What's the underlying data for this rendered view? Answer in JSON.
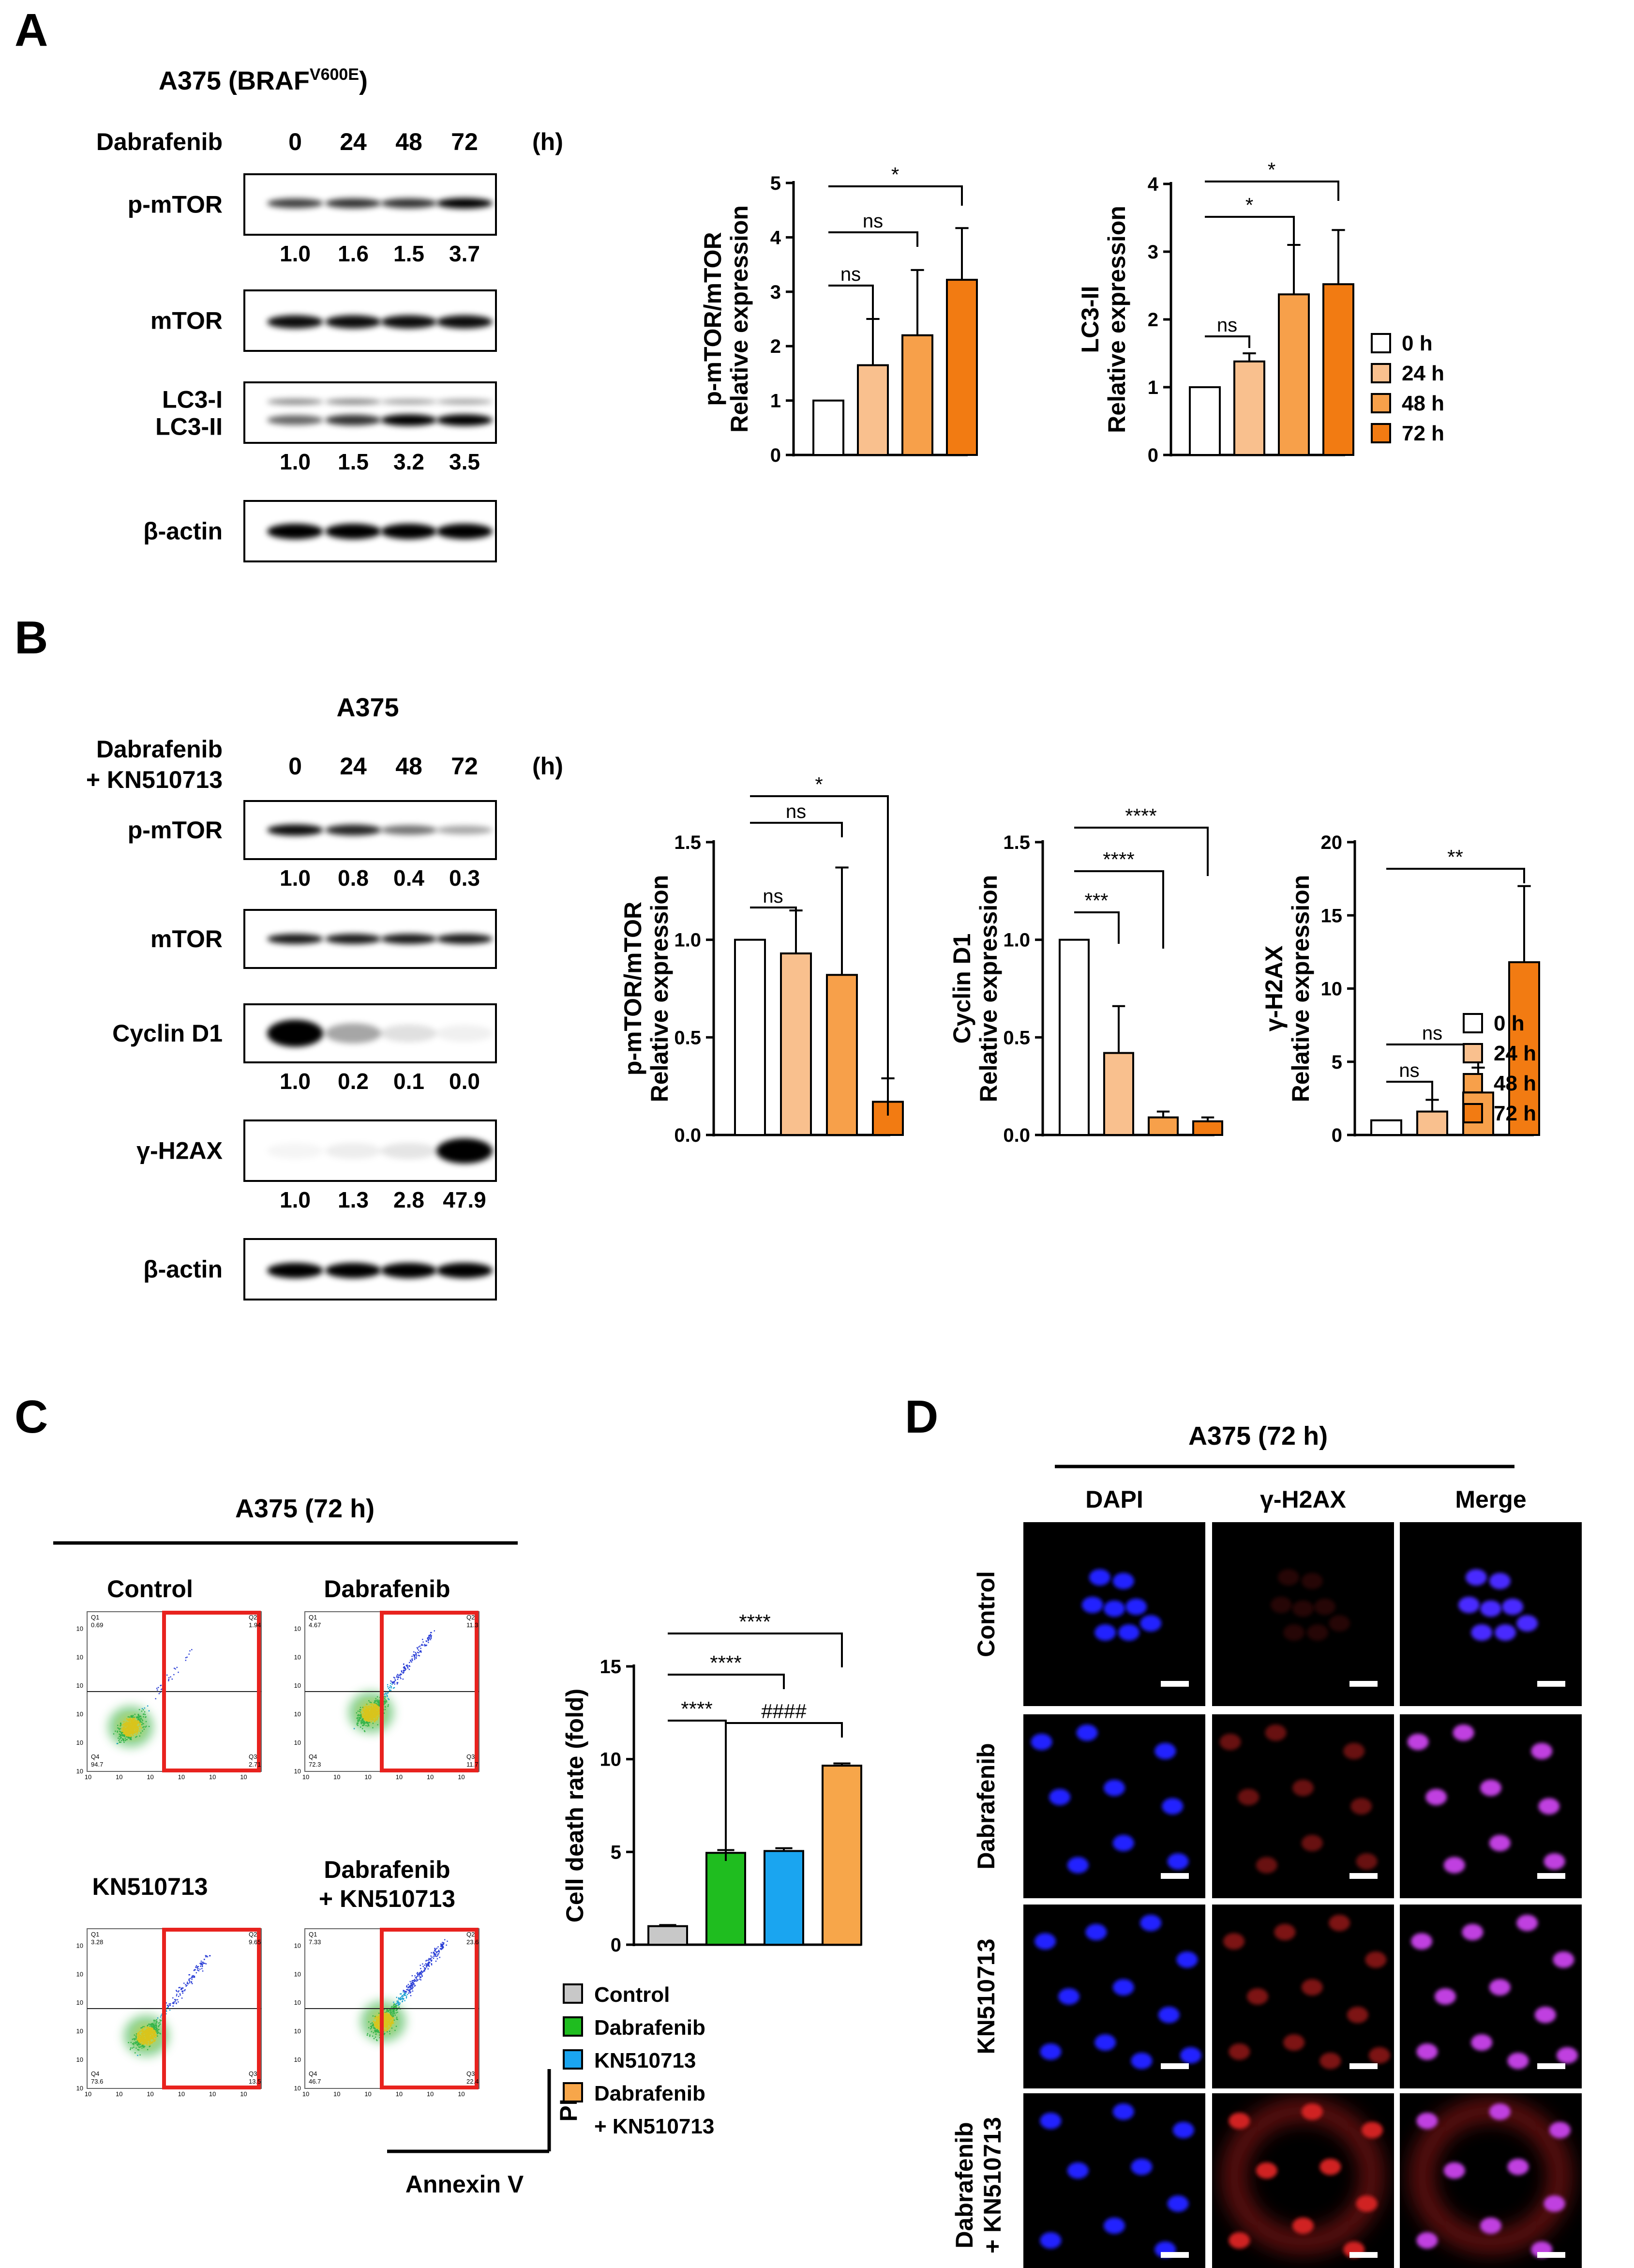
{
  "panels": {
    "A": {
      "letter": "A",
      "title_main": "A375 (BRAF",
      "title_sup": "V600E",
      "title_close": ")",
      "treatment": "Dabrafenib",
      "times": [
        "0",
        "24",
        "48",
        "72"
      ],
      "unit": "(h)",
      "blots": [
        {
          "label": "p-mTOR",
          "quant": [
            "1.0",
            "1.6",
            "1.5",
            "3.7"
          ]
        },
        {
          "label": "mTOR",
          "quant": []
        },
        {
          "label": "LC3-I",
          "label2": "LC3-II",
          "quant": [
            "1.0",
            "1.5",
            "3.2",
            "3.5"
          ]
        },
        {
          "label": "β-actin",
          "quant": []
        }
      ]
    },
    "B": {
      "letter": "B",
      "title": "A375",
      "treatment_line1": "Dabrafenib",
      "treatment_line2": "+ KN510713",
      "times": [
        "0",
        "24",
        "48",
        "72"
      ],
      "unit": "(h)",
      "blots": [
        {
          "label": "p-mTOR",
          "quant": [
            "1.0",
            "0.8",
            "0.4",
            "0.3"
          ]
        },
        {
          "label": "mTOR",
          "quant": []
        },
        {
          "label": "Cyclin D1",
          "quant": [
            "1.0",
            "0.2",
            "0.1",
            "0.0"
          ]
        },
        {
          "label": "γ-H2AX",
          "quant": [
            "1.0",
            "1.3",
            "2.8",
            "47.9"
          ]
        },
        {
          "label": "β-actin",
          "quant": []
        }
      ]
    },
    "C": {
      "letter": "C",
      "title": "A375 (72 h)",
      "flow_plots": [
        {
          "title": "Control",
          "quads": [
            "0.69",
            "1.94",
            "94.7",
            "2.71"
          ]
        },
        {
          "title": "Dabrafenib",
          "quads": [
            "4.67",
            "11.3",
            "72.3",
            "11.7"
          ]
        },
        {
          "title": "KN510713",
          "quads": [
            "3.28",
            "9.65",
            "73.6",
            "13.5"
          ]
        },
        {
          "title": "Dabrafenib\n+ KN510713",
          "quads": [
            "7.33",
            "23.6",
            "46.7",
            "22.4"
          ]
        }
      ],
      "quad_names": [
        "Q1",
        "Q2",
        "Q4",
        "Q3"
      ],
      "axis_x": "Annexin V",
      "axis_y": "PI",
      "legend": [
        "Control",
        "Dabrafenib",
        "KN510713",
        "Dabrafenib",
        "+ KN510713"
      ]
    },
    "D": {
      "letter": "D",
      "title": "A375 (72 h)",
      "columns": [
        "DAPI",
        "γ-H2AX",
        "Merge"
      ],
      "rows": [
        "Control",
        "Dabrafenib",
        "KN510713",
        "Dabrafenib",
        "+ KN510713"
      ]
    }
  },
  "legend_time": [
    "0 h",
    "24 h",
    "48 h",
    "72 h"
  ],
  "colors": {
    "t0": "#ffffff",
    "t24": "#f9c08e",
    "t48": "#f7a04a",
    "t72": "#f27b12",
    "control": "#c8c8c8",
    "dabrafenib": "#1fbd1f",
    "kn510713": "#1aa5f0",
    "combo": "#f7a64a",
    "flow_gate": "#e8221e",
    "dapi": "#2020ff",
    "h2ax": "#d02020",
    "merge": "#c040e0"
  },
  "chart_data": [
    {
      "id": "A-pmtor",
      "type": "bar",
      "categories": [
        "0 h",
        "24 h",
        "48 h",
        "72 h"
      ],
      "values": [
        1.0,
        1.65,
        2.2,
        3.22
      ],
      "errors": [
        0,
        0.85,
        1.2,
        0.95
      ],
      "ylabel_line1": "p-mTOR/mTOR",
      "ylabel_line2": "Relative expression",
      "ylim": [
        0,
        5
      ],
      "yticks": [
        "0",
        "1",
        "2",
        "3",
        "4",
        "5"
      ],
      "significance": [
        {
          "from": 0,
          "to": 1,
          "label": "ns"
        },
        {
          "from": 0,
          "to": 2,
          "label": "ns"
        },
        {
          "from": 0,
          "to": 3,
          "label": "*"
        }
      ]
    },
    {
      "id": "A-lc3",
      "type": "bar",
      "categories": [
        "0 h",
        "24 h",
        "48 h",
        "72 h"
      ],
      "values": [
        1.0,
        1.38,
        2.37,
        2.52
      ],
      "errors": [
        0,
        0.12,
        0.73,
        0.8
      ],
      "ylabel_line1": "LC3-II",
      "ylabel_line2": "Relative expression",
      "ylim": [
        0,
        4
      ],
      "yticks": [
        "0",
        "1",
        "2",
        "3",
        "4"
      ],
      "significance": [
        {
          "from": 0,
          "to": 1,
          "label": "ns"
        },
        {
          "from": 0,
          "to": 2,
          "label": "*"
        },
        {
          "from": 0,
          "to": 3,
          "label": "*"
        }
      ]
    },
    {
      "id": "B-pmtor",
      "type": "bar",
      "categories": [
        "0 h",
        "24 h",
        "48 h",
        "72 h"
      ],
      "values": [
        1.0,
        0.93,
        0.82,
        0.17
      ],
      "errors": [
        0,
        0.22,
        0.55,
        0.12
      ],
      "ylabel_line1": "p-mTOR/mTOR",
      "ylabel_line2": "Relative expression",
      "ylim": [
        0,
        1.5
      ],
      "yticks": [
        "0.0",
        "0.5",
        "1.0",
        "1.5"
      ],
      "significance": [
        {
          "from": 0,
          "to": 1,
          "label": "ns"
        },
        {
          "from": 0,
          "to": 2,
          "label": "ns"
        },
        {
          "from": 0,
          "to": 3,
          "label": "*"
        }
      ]
    },
    {
      "id": "B-cyclin",
      "type": "bar",
      "categories": [
        "0 h",
        "24 h",
        "48 h",
        "72 h"
      ],
      "values": [
        1.0,
        0.42,
        0.09,
        0.07
      ],
      "errors": [
        0,
        0.24,
        0.03,
        0.02
      ],
      "ylabel_line1": "Cyclin D1",
      "ylabel_line2": "Relative expression",
      "ylim": [
        0,
        1.5
      ],
      "yticks": [
        "0.0",
        "0.5",
        "1.0",
        "1.5"
      ],
      "significance": [
        {
          "from": 0,
          "to": 1,
          "label": "***"
        },
        {
          "from": 0,
          "to": 2,
          "label": "****"
        },
        {
          "from": 0,
          "to": 3,
          "label": "****"
        }
      ]
    },
    {
      "id": "B-h2ax",
      "type": "bar",
      "categories": [
        "0 h",
        "24 h",
        "48 h",
        "72 h"
      ],
      "values": [
        1.0,
        1.6,
        2.9,
        11.8
      ],
      "errors": [
        0,
        0.8,
        1.7,
        5.2
      ],
      "ylabel_line1": "γ-H2AX",
      "ylabel_line2": "Relative expression",
      "ylim": [
        0,
        20
      ],
      "yticks": [
        "0",
        "5",
        "10",
        "15",
        "20"
      ],
      "significance": [
        {
          "from": 0,
          "to": 1,
          "label": "ns"
        },
        {
          "from": 0,
          "to": 2,
          "label": "ns"
        },
        {
          "from": 0,
          "to": 3,
          "label": "**"
        }
      ]
    },
    {
      "id": "C-death",
      "type": "bar",
      "categories": [
        "Control",
        "Dabrafenib",
        "KN510713",
        "Dabrafenib + KN510713"
      ],
      "values": [
        1.0,
        4.95,
        5.05,
        9.65
      ],
      "errors": [
        0.06,
        0.15,
        0.15,
        0.12
      ],
      "ylabel_line1": "Cell death rate (fold)",
      "ylabel_line2": "",
      "ylim": [
        0,
        15
      ],
      "yticks": [
        "0",
        "5",
        "10",
        "15"
      ],
      "significance": [
        {
          "from": 0,
          "to": 1,
          "label": "****"
        },
        {
          "from": 0,
          "to": 2,
          "label": "****"
        },
        {
          "from": 0,
          "to": 3,
          "label": "****"
        },
        {
          "from": 1,
          "to": 3,
          "label": "####"
        }
      ]
    }
  ]
}
